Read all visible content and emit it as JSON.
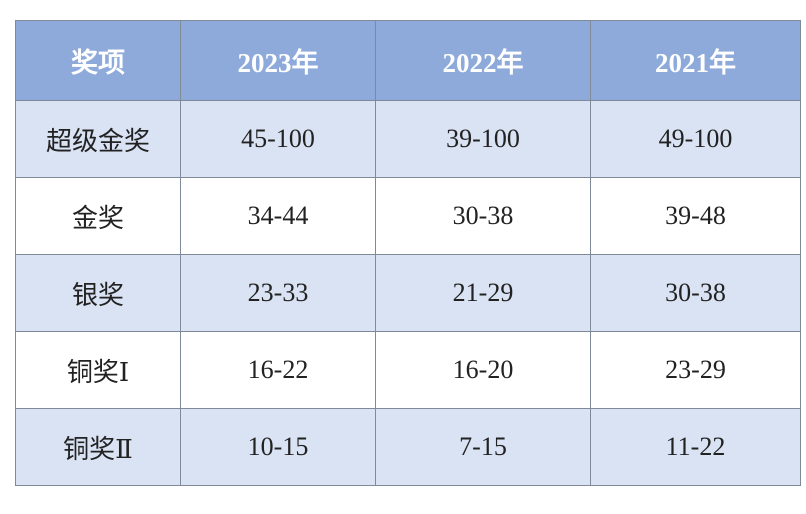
{
  "table": {
    "header": [
      "奖项",
      "2023年",
      "2022年",
      "2021年"
    ],
    "rows": [
      [
        "超级金奖",
        "45-100",
        "39-100",
        "49-100"
      ],
      [
        "金奖",
        "34-44",
        "30-38",
        "39-48"
      ],
      [
        "银奖",
        "23-33",
        "21-29",
        "30-38"
      ],
      [
        "铜奖Ⅰ",
        "16-22",
        "16-20",
        "23-29"
      ],
      [
        "铜奖Ⅱ",
        "10-15",
        "7-15",
        "11-22"
      ]
    ]
  }
}
